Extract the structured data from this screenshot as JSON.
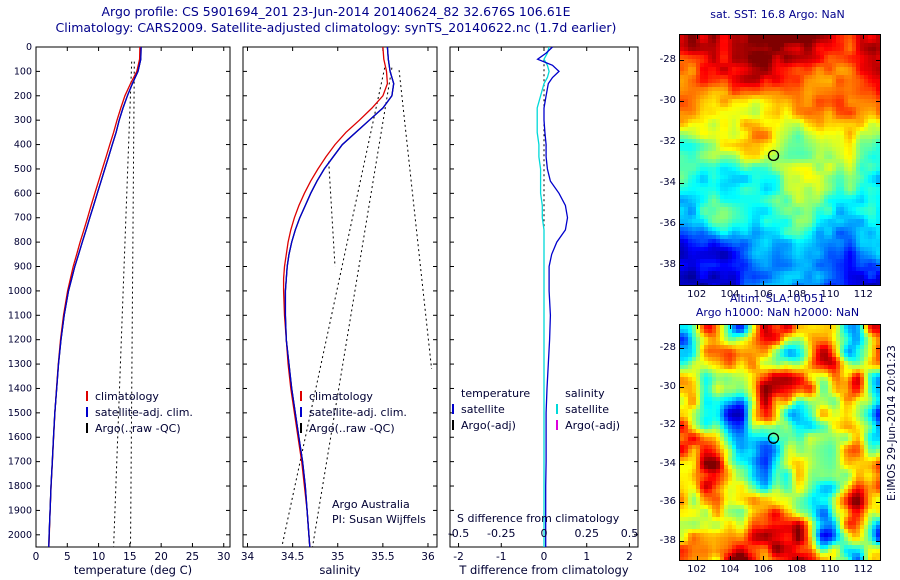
{
  "header": {
    "title_line1": "Argo profile: CS 5901694_201 23-Jun-2014 20140624_82 32.676S 106.61E",
    "title_line2": "Climatology: CARS2009. Satellite-adjusted climatology: synTS_20140622.nc (1.7d earlier)"
  },
  "footer": {
    "stamp": "E:IMOS 29-Jun-2014 20:01:23"
  },
  "colors": {
    "climatology": "#dd0000",
    "satellite": "#0000cc",
    "argo": "#000000",
    "salinity_satellite": "#00d9d9",
    "salinity_argo": "#dd00dd",
    "title": "#00008B"
  },
  "chart_data": [
    {
      "id": "temperature_profile",
      "type": "line",
      "xlabel": "temperature (deg C)",
      "xlim": [
        0,
        31
      ],
      "ylim": [
        0,
        2050
      ],
      "xticks": [
        0,
        5,
        10,
        15,
        20,
        25,
        30
      ],
      "xtick_labels": [
        "0",
        "5",
        "10",
        "15",
        "20",
        "25",
        "30"
      ],
      "yticks": [
        0,
        100,
        200,
        300,
        400,
        500,
        600,
        700,
        800,
        900,
        1000,
        1100,
        1200,
        1300,
        1400,
        1500,
        1600,
        1700,
        1800,
        1900,
        2000
      ],
      "ytick_labels": [
        "0",
        "100",
        "200",
        "300",
        "400",
        "500",
        "600",
        "700",
        "800",
        "900",
        "1000",
        "1100",
        "1200",
        "1300",
        "1400",
        "1500",
        "1600",
        "1700",
        "1800",
        "1900",
        "2000"
      ],
      "depths": [
        0,
        50,
        100,
        150,
        200,
        250,
        300,
        350,
        400,
        450,
        500,
        550,
        600,
        650,
        700,
        750,
        800,
        850,
        900,
        950,
        1000,
        1100,
        1200,
        1300,
        1400,
        1500,
        1600,
        1700,
        1800,
        1900,
        2000,
        2050
      ],
      "series": [
        {
          "name": "climatology",
          "color": "#dd0000",
          "values": [
            16.6,
            16.55,
            16.1,
            15.1,
            14.2,
            13.55,
            12.95,
            12.4,
            11.8,
            11.2,
            10.6,
            10.0,
            9.4,
            8.8,
            8.25,
            7.65,
            7.05,
            6.5,
            5.95,
            5.5,
            5.05,
            4.4,
            3.92,
            3.56,
            3.27,
            3.02,
            2.82,
            2.62,
            2.42,
            2.26,
            2.12,
            2.06
          ]
        },
        {
          "name": "Argo(..raw -QC)",
          "color": "#000000",
          "values": [
            16.8,
            16.75,
            16.3,
            15.4,
            14.6,
            13.9,
            13.3,
            12.8,
            12.2,
            11.6,
            11.0,
            10.4,
            9.8,
            9.2,
            8.6,
            8.0,
            7.4,
            6.8,
            6.2,
            5.7,
            5.2,
            4.5,
            4.0,
            3.6,
            3.3,
            3.0,
            2.8,
            2.6,
            2.4,
            2.25,
            2.1,
            2.05
          ]
        },
        {
          "name": "satellite-adj. clim.",
          "color": "#0000cc",
          "values": [
            16.8,
            16.75,
            16.3,
            15.4,
            14.6,
            13.9,
            13.3,
            12.8,
            12.2,
            11.6,
            11.0,
            10.4,
            9.8,
            9.2,
            8.6,
            8.0,
            7.4,
            6.8,
            6.2,
            5.7,
            5.2,
            4.5,
            4.0,
            3.6,
            3.3,
            3.0,
            2.8,
            2.6,
            2.4,
            2.25,
            2.1,
            2.05
          ]
        }
      ],
      "guides": [
        {
          "points": [
            [
              15.3,
              60
            ],
            [
              12.4,
              2050
            ]
          ]
        },
        {
          "points": [
            [
              15.7,
              60
            ],
            [
              15.1,
              2050
            ]
          ]
        }
      ],
      "legend": [
        {
          "label": "climatology",
          "color": "#dd0000"
        },
        {
          "label": "satellite-adj. clim.",
          "color": "#0000cc"
        },
        {
          "label": "Argo(..raw -QC)",
          "color": "#000000"
        }
      ]
    },
    {
      "id": "salinity_profile",
      "type": "line",
      "xlabel": "salinity",
      "xlim": [
        33.95,
        36.1
      ],
      "ylim": [
        0,
        2050
      ],
      "xticks": [
        34,
        34.5,
        35,
        35.5,
        36
      ],
      "xtick_labels": [
        "34",
        "34.5",
        "35",
        "35.5",
        "36"
      ],
      "depths": [
        0,
        50,
        100,
        150,
        200,
        250,
        300,
        350,
        400,
        450,
        500,
        550,
        600,
        650,
        700,
        750,
        800,
        850,
        900,
        950,
        1000,
        1100,
        1200,
        1300,
        1400,
        1500,
        1600,
        1700,
        1800,
        1900,
        2000,
        2050
      ],
      "series": [
        {
          "name": "climatology",
          "color": "#dd0000",
          "values": [
            35.5,
            35.51,
            35.54,
            35.55,
            35.5,
            35.38,
            35.24,
            35.09,
            34.97,
            34.87,
            34.78,
            34.7,
            34.63,
            34.57,
            34.52,
            34.48,
            34.45,
            34.43,
            34.41,
            34.4,
            34.4,
            34.41,
            34.43,
            34.45,
            34.48,
            34.52,
            34.56,
            34.6,
            34.63,
            34.66,
            34.68,
            34.69
          ]
        },
        {
          "name": "Argo(..raw -QC)",
          "color": "#000000",
          "values": [
            35.55,
            35.56,
            35.58,
            35.62,
            35.6,
            35.5,
            35.35,
            35.2,
            35.05,
            34.95,
            34.85,
            34.77,
            34.7,
            34.64,
            34.58,
            34.53,
            34.49,
            34.46,
            34.44,
            34.43,
            34.42,
            34.42,
            34.43,
            34.46,
            34.49,
            34.53,
            34.57,
            34.61,
            34.64,
            34.66,
            34.68,
            34.69
          ]
        },
        {
          "name": "satellite-adj. clim.",
          "color": "#0000cc",
          "values": [
            35.55,
            35.56,
            35.58,
            35.62,
            35.6,
            35.5,
            35.35,
            35.2,
            35.05,
            34.95,
            34.85,
            34.77,
            34.7,
            34.64,
            34.58,
            34.53,
            34.49,
            34.46,
            34.44,
            34.43,
            34.42,
            34.42,
            34.43,
            34.46,
            34.49,
            34.53,
            34.57,
            34.61,
            34.64,
            34.66,
            34.68,
            34.69
          ]
        }
      ],
      "guides": [
        {
          "points": [
            [
              35.52,
              85
            ],
            [
              34.38,
              2050
            ]
          ]
        },
        {
          "points": [
            [
              35.6,
              85
            ],
            [
              34.72,
              2050
            ]
          ]
        },
        {
          "points": [
            [
              35.68,
              95
            ],
            [
              36.04,
              1320
            ]
          ]
        },
        {
          "points": [
            [
              34.9,
              470
            ],
            [
              34.97,
              900
            ]
          ]
        }
      ],
      "legend": [
        {
          "label": "climatology",
          "color": "#dd0000"
        },
        {
          "label": "satellite-adj. clim.",
          "color": "#0000cc"
        },
        {
          "label": "Argo(..raw -QC)",
          "color": "#000000"
        }
      ],
      "annotations": [
        "Argo Australia",
        "PI: Susan Wijffels"
      ]
    },
    {
      "id": "difference_profile",
      "type": "line",
      "xlabel": "T difference from climatology",
      "xlim": [
        -2.2,
        2.2
      ],
      "ylim": [
        0,
        2050
      ],
      "xticks": [
        -2,
        -1,
        0,
        1,
        2
      ],
      "xtick_labels": [
        "-2",
        "-1",
        "0",
        "1",
        "2"
      ],
      "s_axis": {
        "label": "S difference from climatology",
        "lim": [
          -0.55,
          0.55
        ],
        "ticks": [
          -0.5,
          -0.25,
          0,
          0.25,
          0.5
        ],
        "tick_labels": [
          "-0.5",
          "-0.25",
          "0",
          "0.25",
          "0.5"
        ]
      },
      "depths": [
        0,
        25,
        50,
        75,
        100,
        125,
        150,
        200,
        250,
        300,
        350,
        400,
        450,
        500,
        550,
        600,
        650,
        700,
        750,
        800,
        850,
        900,
        1000,
        1100,
        1200,
        1300,
        1400,
        1500,
        1600,
        1700,
        1800,
        1900,
        2000,
        2050
      ],
      "series": [
        {
          "name": "salinity satellite",
          "axis": "s",
          "color": "#00d9d9",
          "values": [
            0.03,
            0.02,
            0.0,
            0.02,
            0.03,
            0.02,
            0.0,
            -0.02,
            -0.04,
            -0.04,
            -0.04,
            -0.03,
            -0.03,
            -0.02,
            -0.02,
            -0.02,
            -0.01,
            -0.01,
            0.0,
            0.0,
            0.0,
            0.0,
            0.0,
            0.0,
            0.0,
            0.0,
            0.0,
            0.0,
            0.0,
            0.0,
            0.0,
            0.0,
            0.0,
            0.0
          ]
        },
        {
          "name": "salinity Argo(-adj)",
          "axis": "s",
          "color": "#dd00dd",
          "values": []
        },
        {
          "name": "temperature Argo(-adj)",
          "axis": "t",
          "color": "#000000",
          "values": []
        },
        {
          "name": "temperature satellite",
          "axis": "t",
          "color": "#0000cc",
          "values": [
            0.2,
            0.05,
            -0.15,
            0.2,
            0.35,
            0.2,
            0.1,
            0.05,
            0.0,
            0.0,
            0.02,
            0.05,
            0.05,
            0.08,
            0.15,
            0.35,
            0.5,
            0.55,
            0.5,
            0.3,
            0.18,
            0.12,
            0.12,
            0.15,
            0.13,
            0.1,
            0.07,
            0.05,
            0.05,
            0.05,
            0.04,
            0.04,
            0.04,
            0.04
          ]
        }
      ],
      "guides": [
        {
          "points": [
            [
              0,
              50
            ],
            [
              0,
              2050
            ]
          ]
        }
      ],
      "legend_columns": [
        {
          "header": "temperature",
          "items": [
            {
              "label": "satellite",
              "color": "#0000cc"
            },
            {
              "label": "Argo(-adj)",
              "color": "#000000"
            }
          ]
        },
        {
          "header": "salinity",
          "items": [
            {
              "label": "satellite",
              "color": "#00d9d9"
            },
            {
              "label": "Argo(-adj)",
              "color": "#dd00dd"
            }
          ]
        }
      ]
    },
    {
      "id": "sst_map",
      "type": "heatmap",
      "title": "sat. SST: 16.8 Argo: NaN",
      "xlim": [
        101,
        113
      ],
      "ylim": [
        -26.8,
        -39.0
      ],
      "xticks": [
        102,
        104,
        106,
        108,
        110,
        112
      ],
      "yticks": [
        -28,
        -30,
        -32,
        -34,
        -36,
        -38
      ],
      "marker": {
        "lon": 106.61,
        "lat": -32.676
      },
      "appearance": {
        "palette": "jet",
        "pattern": "warm-north-to-cool-south-gradient"
      }
    },
    {
      "id": "sla_map",
      "type": "heatmap",
      "title_line1": "Altim. SLA: 0.051",
      "title_line2": "Argo h1000: NaN h2000: NaN",
      "xlim": [
        101,
        113
      ],
      "ylim": [
        -26.8,
        -39.0
      ],
      "xticks": [
        102,
        104,
        106,
        108,
        110,
        112
      ],
      "yticks": [
        -28,
        -30,
        -32,
        -34,
        -36,
        -38
      ],
      "marker": {
        "lon": 106.61,
        "lat": -32.676
      },
      "appearance": {
        "palette": "jet",
        "pattern": "mesoscale-eddy-noise"
      }
    }
  ]
}
